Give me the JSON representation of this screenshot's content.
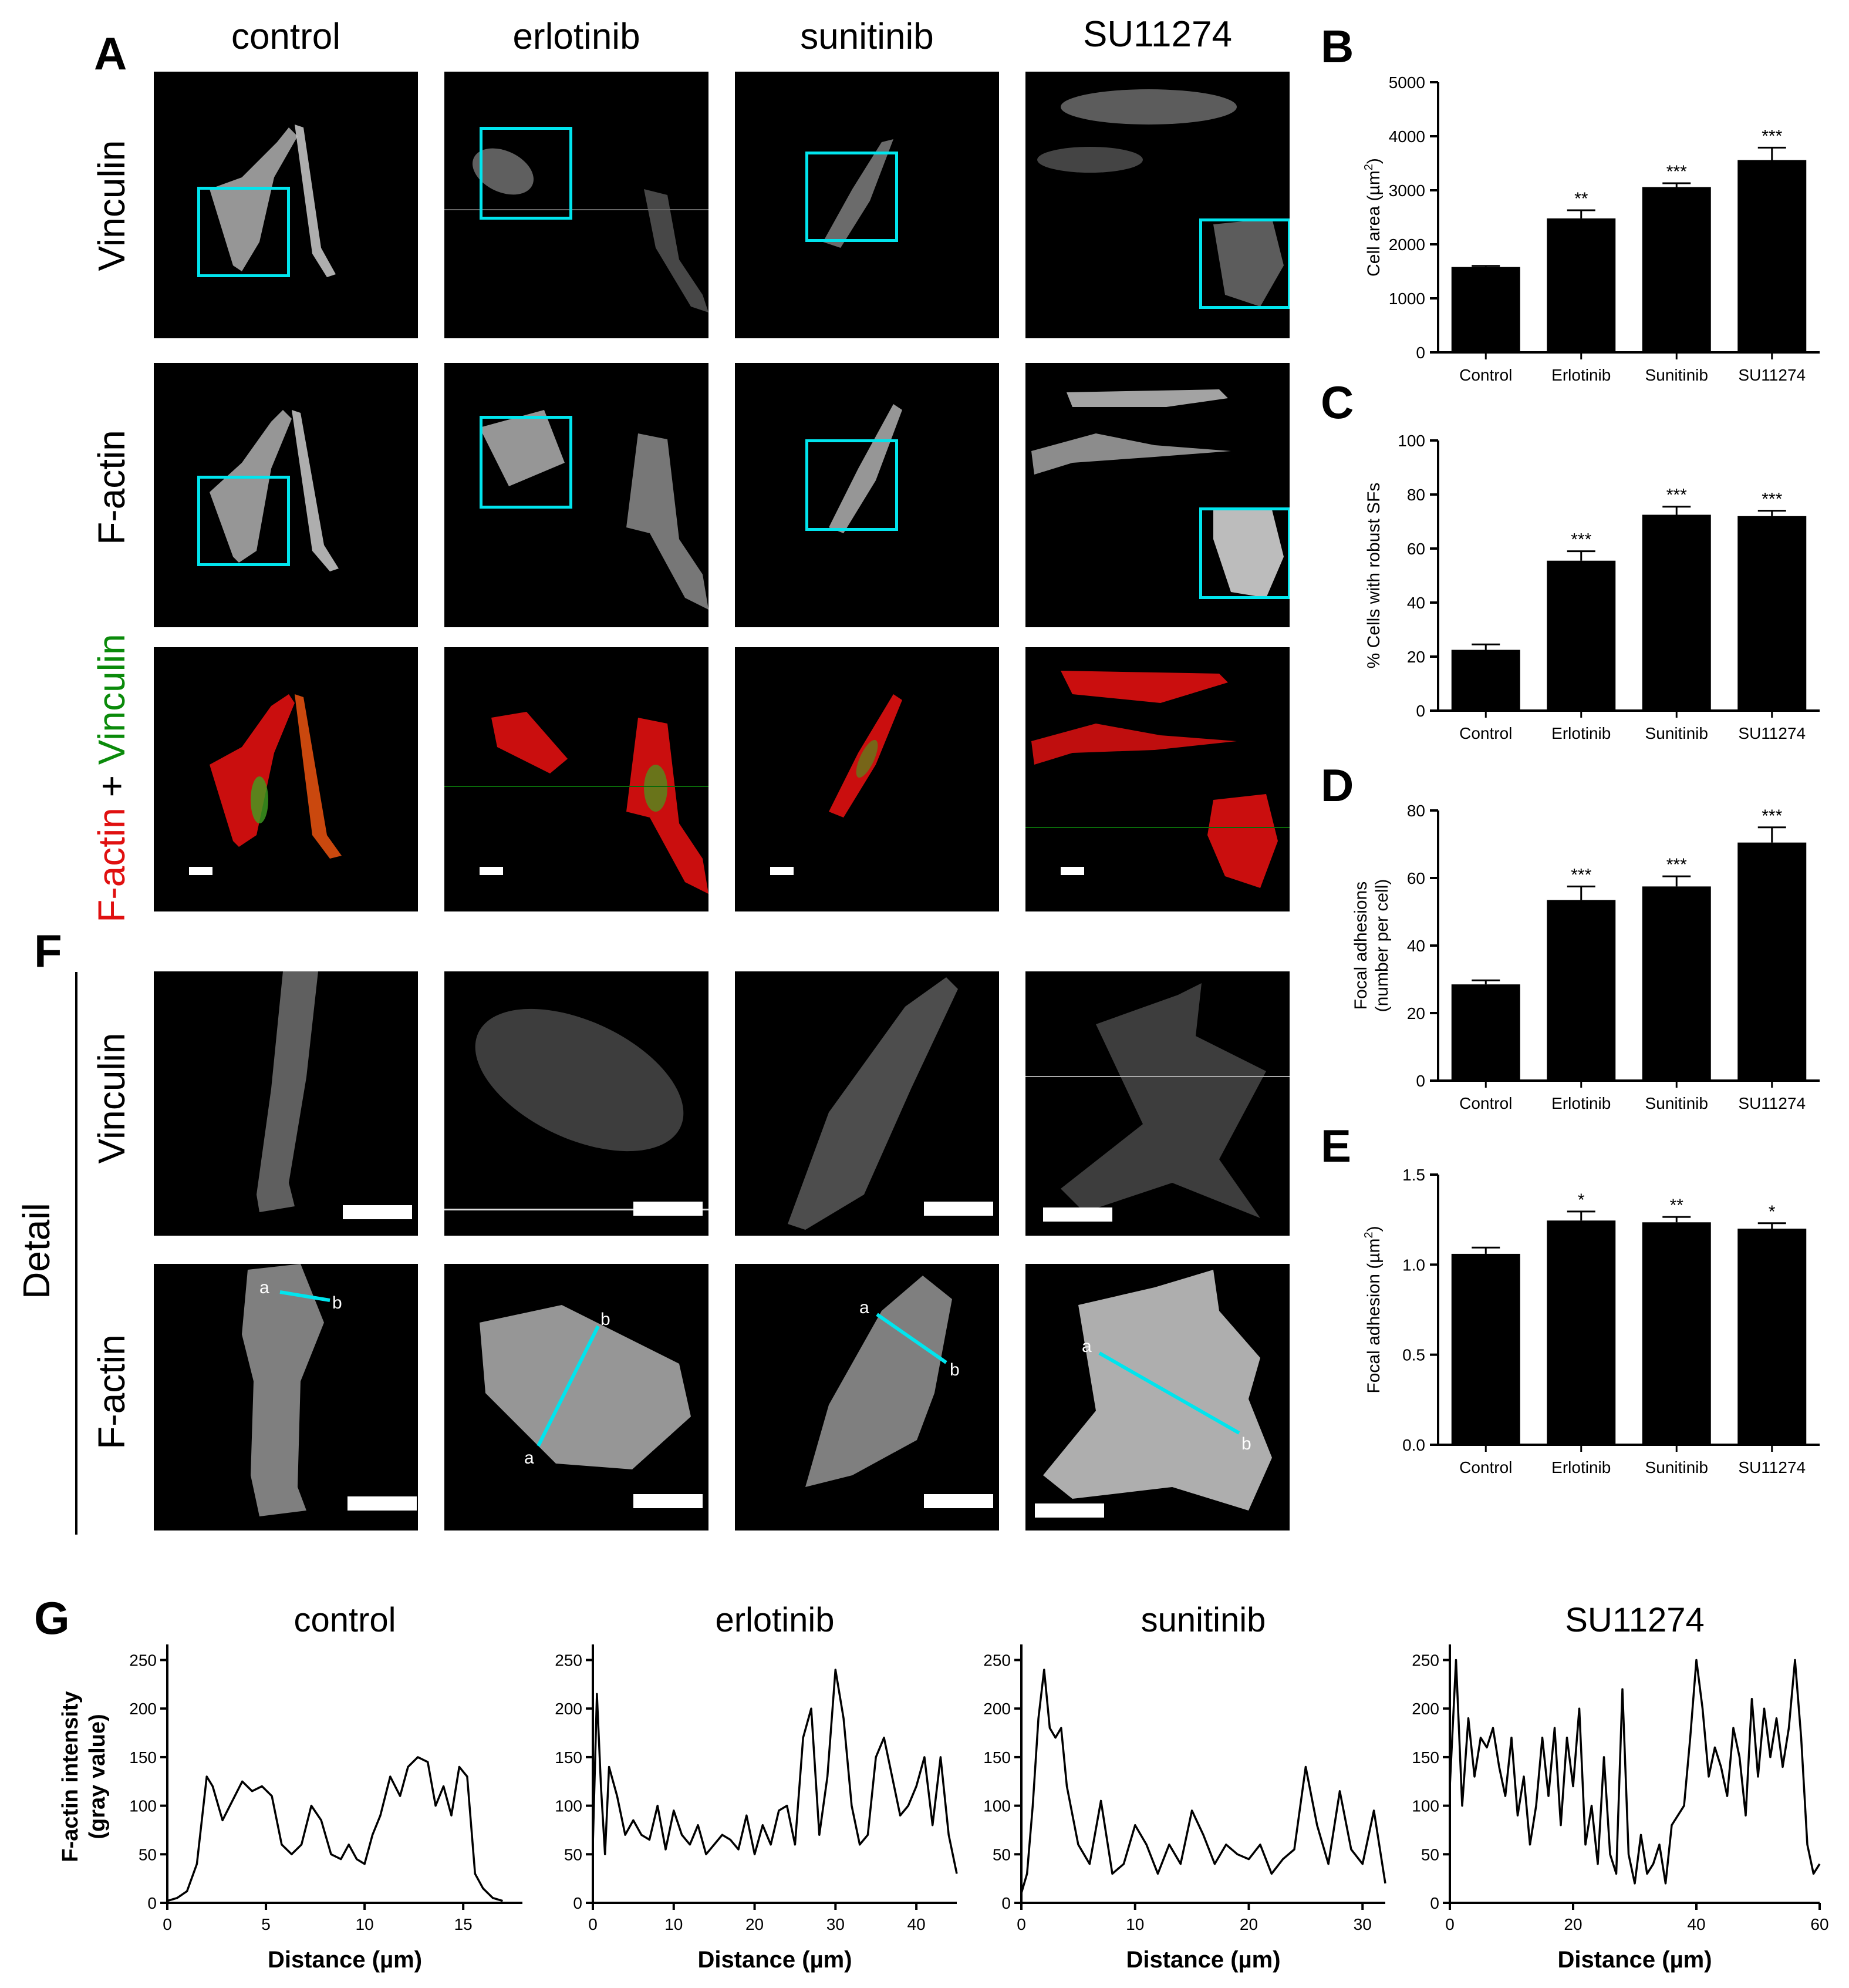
{
  "panel_letters": {
    "A": "A",
    "B": "B",
    "C": "C",
    "D": "D",
    "E": "E",
    "F": "F",
    "G": "G"
  },
  "columns": [
    "control",
    "erlotinib",
    "sunitinib",
    "SU11274"
  ],
  "row_labels": {
    "vinculin": "Vinculin",
    "factin": "F-actin",
    "merge_red": "F-actin",
    "merge_plus": " + ",
    "merge_green": "Vinculin",
    "detail": "Detail",
    "detail_vinculin": "Vinculin",
    "detail_factin": "F-actin"
  },
  "line_end_labels": {
    "start": "a",
    "end": "b"
  },
  "colors": {
    "box": "#00e5ee",
    "factin_red": "#e01010",
    "vinculin_green": "#0a8a0a",
    "bar": "#000000"
  },
  "chart_data": [
    {
      "id": "B",
      "type": "bar",
      "categories": [
        "Control",
        "Erlotinib",
        "Sunitinib",
        "SU11274"
      ],
      "values": [
        1580,
        2480,
        3060,
        3560
      ],
      "errors": [
        20,
        150,
        70,
        230
      ],
      "significance": [
        "",
        "**",
        "***",
        "***"
      ],
      "ylabel_main": "Cell area (µm",
      "ylabel_sup": "2",
      "ylabel_end": ")",
      "ylim": [
        0,
        5000
      ],
      "yticks": [
        0,
        1000,
        2000,
        3000,
        4000,
        5000
      ],
      "ytick_labels": [
        "0",
        "1000",
        "2000",
        "3000",
        "4000",
        "5000"
      ]
    },
    {
      "id": "C",
      "type": "bar",
      "categories": [
        "Control",
        "Erlotinib",
        "Sunitinib",
        "SU11274"
      ],
      "values": [
        22.5,
        55.5,
        72.5,
        72
      ],
      "errors": [
        2,
        3.5,
        3,
        2
      ],
      "significance": [
        "",
        "***",
        "***",
        "***"
      ],
      "ylabel_main": "% Cells with robust SFs",
      "ylabel_sup": "",
      "ylabel_end": "",
      "ylim": [
        0,
        100
      ],
      "yticks": [
        0,
        20,
        40,
        60,
        80,
        100
      ],
      "ytick_labels": [
        "0",
        "20",
        "40",
        "60",
        "80",
        "100"
      ]
    },
    {
      "id": "D",
      "type": "bar",
      "categories": [
        "Control",
        "Erlotinib",
        "Sunitinib",
        "SU11274"
      ],
      "values": [
        28.5,
        53.5,
        57.5,
        70.5
      ],
      "errors": [
        1.2,
        4,
        3,
        4.5
      ],
      "significance": [
        "",
        "***",
        "***",
        "***"
      ],
      "ylabel_lines": [
        "Focal adhesions",
        "(number per cell)"
      ],
      "ylim": [
        0,
        80
      ],
      "yticks": [
        0,
        20,
        40,
        60,
        80
      ],
      "ytick_labels": [
        "0",
        "20",
        "40",
        "60",
        "80"
      ]
    },
    {
      "id": "E",
      "type": "bar",
      "categories": [
        "Control",
        "Erlotinib",
        "Sunitinib",
        "SU11274"
      ],
      "values": [
        1.06,
        1.245,
        1.235,
        1.2
      ],
      "errors": [
        0.035,
        0.05,
        0.03,
        0.03
      ],
      "significance": [
        "",
        "*",
        "**",
        "*"
      ],
      "ylabel_main": "Focal adhesion (µm",
      "ylabel_sup": "2",
      "ylabel_end": ")",
      "ylim": [
        0,
        1.5
      ],
      "yticks": [
        0,
        0.5,
        1.0,
        1.5
      ],
      "ytick_labels": [
        "0.0",
        "0.5",
        "1.0",
        "1.5"
      ]
    },
    {
      "id": "G-control",
      "type": "line",
      "title": "control",
      "xlabel": "Distance (µm)",
      "ylabel_lines": [
        "F-actin intensity",
        "(gray value)"
      ],
      "xlim": [
        0,
        18
      ],
      "xticks": [
        0,
        5,
        10,
        15
      ],
      "ylim": [
        0,
        260
      ],
      "yticks": [
        0,
        50,
        100,
        150,
        200,
        250
      ],
      "x": [
        0,
        0.5,
        1,
        1.5,
        2,
        2.3,
        2.8,
        3.3,
        3.8,
        4.3,
        4.8,
        5.3,
        5.8,
        6.3,
        6.8,
        7.3,
        7.8,
        8.3,
        8.8,
        9.2,
        9.6,
        10.0,
        10.4,
        10.8,
        11.3,
        11.8,
        12.2,
        12.7,
        13.2,
        13.6,
        14.0,
        14.4,
        14.8,
        15.2,
        15.6,
        16.0,
        16.5,
        17.0
      ],
      "y": [
        2,
        5,
        12,
        40,
        130,
        120,
        85,
        105,
        125,
        115,
        120,
        110,
        60,
        50,
        60,
        100,
        85,
        50,
        45,
        60,
        45,
        40,
        70,
        90,
        130,
        110,
        140,
        150,
        145,
        100,
        120,
        90,
        140,
        130,
        30,
        15,
        5,
        2
      ]
    },
    {
      "id": "G-erlotinib",
      "type": "line",
      "title": "erlotinib",
      "xlabel": "Distance (µm)",
      "xlim": [
        0,
        45
      ],
      "xticks": [
        0,
        10,
        20,
        30,
        40
      ],
      "ylim": [
        0,
        260
      ],
      "yticks": [
        0,
        50,
        100,
        150,
        200,
        250
      ],
      "x": [
        0,
        0.5,
        1,
        1.5,
        2,
        3,
        4,
        5,
        6,
        7,
        8,
        9,
        10,
        11,
        12,
        13,
        14,
        15,
        16,
        17,
        18,
        19,
        20,
        21,
        22,
        23,
        24,
        25,
        26,
        27,
        28,
        29,
        30,
        31,
        32,
        33,
        34,
        35,
        36,
        37,
        38,
        39,
        40,
        41,
        42,
        43,
        44,
        45
      ],
      "y": [
        60,
        215,
        120,
        50,
        140,
        110,
        70,
        85,
        70,
        65,
        100,
        55,
        95,
        70,
        60,
        80,
        50,
        60,
        70,
        65,
        55,
        90,
        50,
        80,
        60,
        95,
        100,
        60,
        170,
        200,
        70,
        130,
        240,
        190,
        100,
        60,
        70,
        150,
        170,
        130,
        90,
        100,
        120,
        150,
        80,
        150,
        70,
        30
      ]
    },
    {
      "id": "G-sunitinib",
      "type": "line",
      "title": "sunitinib",
      "xlabel": "Distance (µm)",
      "xlim": [
        0,
        32
      ],
      "xticks": [
        0,
        10,
        20,
        30
      ],
      "ylim": [
        0,
        260
      ],
      "yticks": [
        0,
        50,
        100,
        150,
        200,
        250
      ],
      "x": [
        0,
        0.5,
        1,
        1.5,
        2,
        2.5,
        3,
        3.5,
        4,
        5,
        6,
        7,
        8,
        9,
        10,
        11,
        12,
        13,
        14,
        15,
        16,
        17,
        18,
        19,
        20,
        21,
        22,
        23,
        24,
        25,
        26,
        27,
        28,
        29,
        30,
        31,
        32
      ],
      "y": [
        10,
        30,
        100,
        190,
        240,
        180,
        170,
        180,
        120,
        60,
        40,
        105,
        30,
        40,
        80,
        60,
        30,
        60,
        40,
        95,
        70,
        40,
        60,
        50,
        45,
        60,
        30,
        45,
        55,
        140,
        80,
        40,
        115,
        55,
        40,
        95,
        20
      ]
    },
    {
      "id": "G-SU11274",
      "type": "line",
      "title": "SU11274",
      "xlabel": "Distance (µm)",
      "xlim": [
        0,
        60
      ],
      "xticks": [
        0,
        20,
        40,
        60
      ],
      "ylim": [
        0,
        260
      ],
      "yticks": [
        0,
        50,
        100,
        150,
        200,
        250
      ],
      "x": [
        0,
        1,
        2,
        3,
        4,
        5,
        6,
        7,
        8,
        9,
        10,
        11,
        12,
        13,
        14,
        15,
        16,
        17,
        18,
        19,
        20,
        21,
        22,
        23,
        24,
        25,
        26,
        27,
        28,
        29,
        30,
        31,
        32,
        33,
        34,
        35,
        36,
        37,
        38,
        39,
        40,
        41,
        42,
        43,
        44,
        45,
        46,
        47,
        48,
        49,
        50,
        51,
        52,
        53,
        54,
        55,
        56,
        57,
        58,
        59,
        60
      ],
      "y": [
        120,
        250,
        100,
        190,
        130,
        170,
        160,
        180,
        140,
        110,
        170,
        90,
        130,
        60,
        100,
        170,
        110,
        180,
        80,
        170,
        120,
        200,
        60,
        100,
        40,
        150,
        50,
        30,
        220,
        50,
        20,
        70,
        30,
        40,
        60,
        20,
        80,
        90,
        100,
        170,
        250,
        200,
        130,
        160,
        140,
        110,
        180,
        150,
        90,
        210,
        130,
        200,
        150,
        190,
        140,
        180,
        250,
        170,
        60,
        30,
        40
      ]
    }
  ]
}
